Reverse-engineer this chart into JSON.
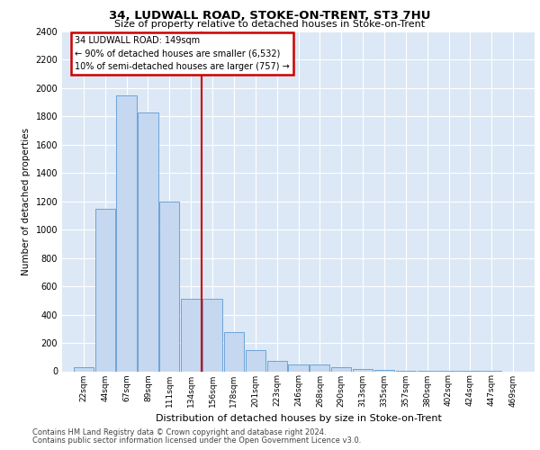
{
  "title_line1": "34, LUDWALL ROAD, STOKE-ON-TRENT, ST3 7HU",
  "title_line2": "Size of property relative to detached houses in Stoke-on-Trent",
  "xlabel": "Distribution of detached houses by size in Stoke-on-Trent",
  "ylabel": "Number of detached properties",
  "footer_line1": "Contains HM Land Registry data © Crown copyright and database right 2024.",
  "footer_line2": "Contains public sector information licensed under the Open Government Licence v3.0.",
  "categories": [
    "22sqm",
    "44sqm",
    "67sqm",
    "89sqm",
    "111sqm",
    "134sqm",
    "156sqm",
    "178sqm",
    "201sqm",
    "223sqm",
    "246sqm",
    "268sqm",
    "290sqm",
    "313sqm",
    "335sqm",
    "357sqm",
    "380sqm",
    "402sqm",
    "424sqm",
    "447sqm",
    "469sqm"
  ],
  "values": [
    30,
    1150,
    1950,
    1830,
    1200,
    510,
    510,
    275,
    150,
    75,
    50,
    50,
    30,
    15,
    10,
    5,
    5,
    5,
    5,
    5,
    0
  ],
  "bar_color": "#c5d8f0",
  "bar_edge_color": "#5b9bd5",
  "property_line_label": "34 LUDWALL ROAD: 149sqm",
  "annotation_line1": "← 90% of detached houses are smaller (6,532)",
  "annotation_line2": "10% of semi-detached houses are larger (757) →",
  "annotation_box_color": "#cc0000",
  "vertical_line_color": "#cc0000",
  "ylim": [
    0,
    2400
  ],
  "yticks": [
    0,
    200,
    400,
    600,
    800,
    1000,
    1200,
    1400,
    1600,
    1800,
    2000,
    2200,
    2400
  ],
  "bin_width": 22,
  "background_color": "#dce8f5",
  "grid_color": "#ffffff",
  "vertical_line_bin_index": 6
}
